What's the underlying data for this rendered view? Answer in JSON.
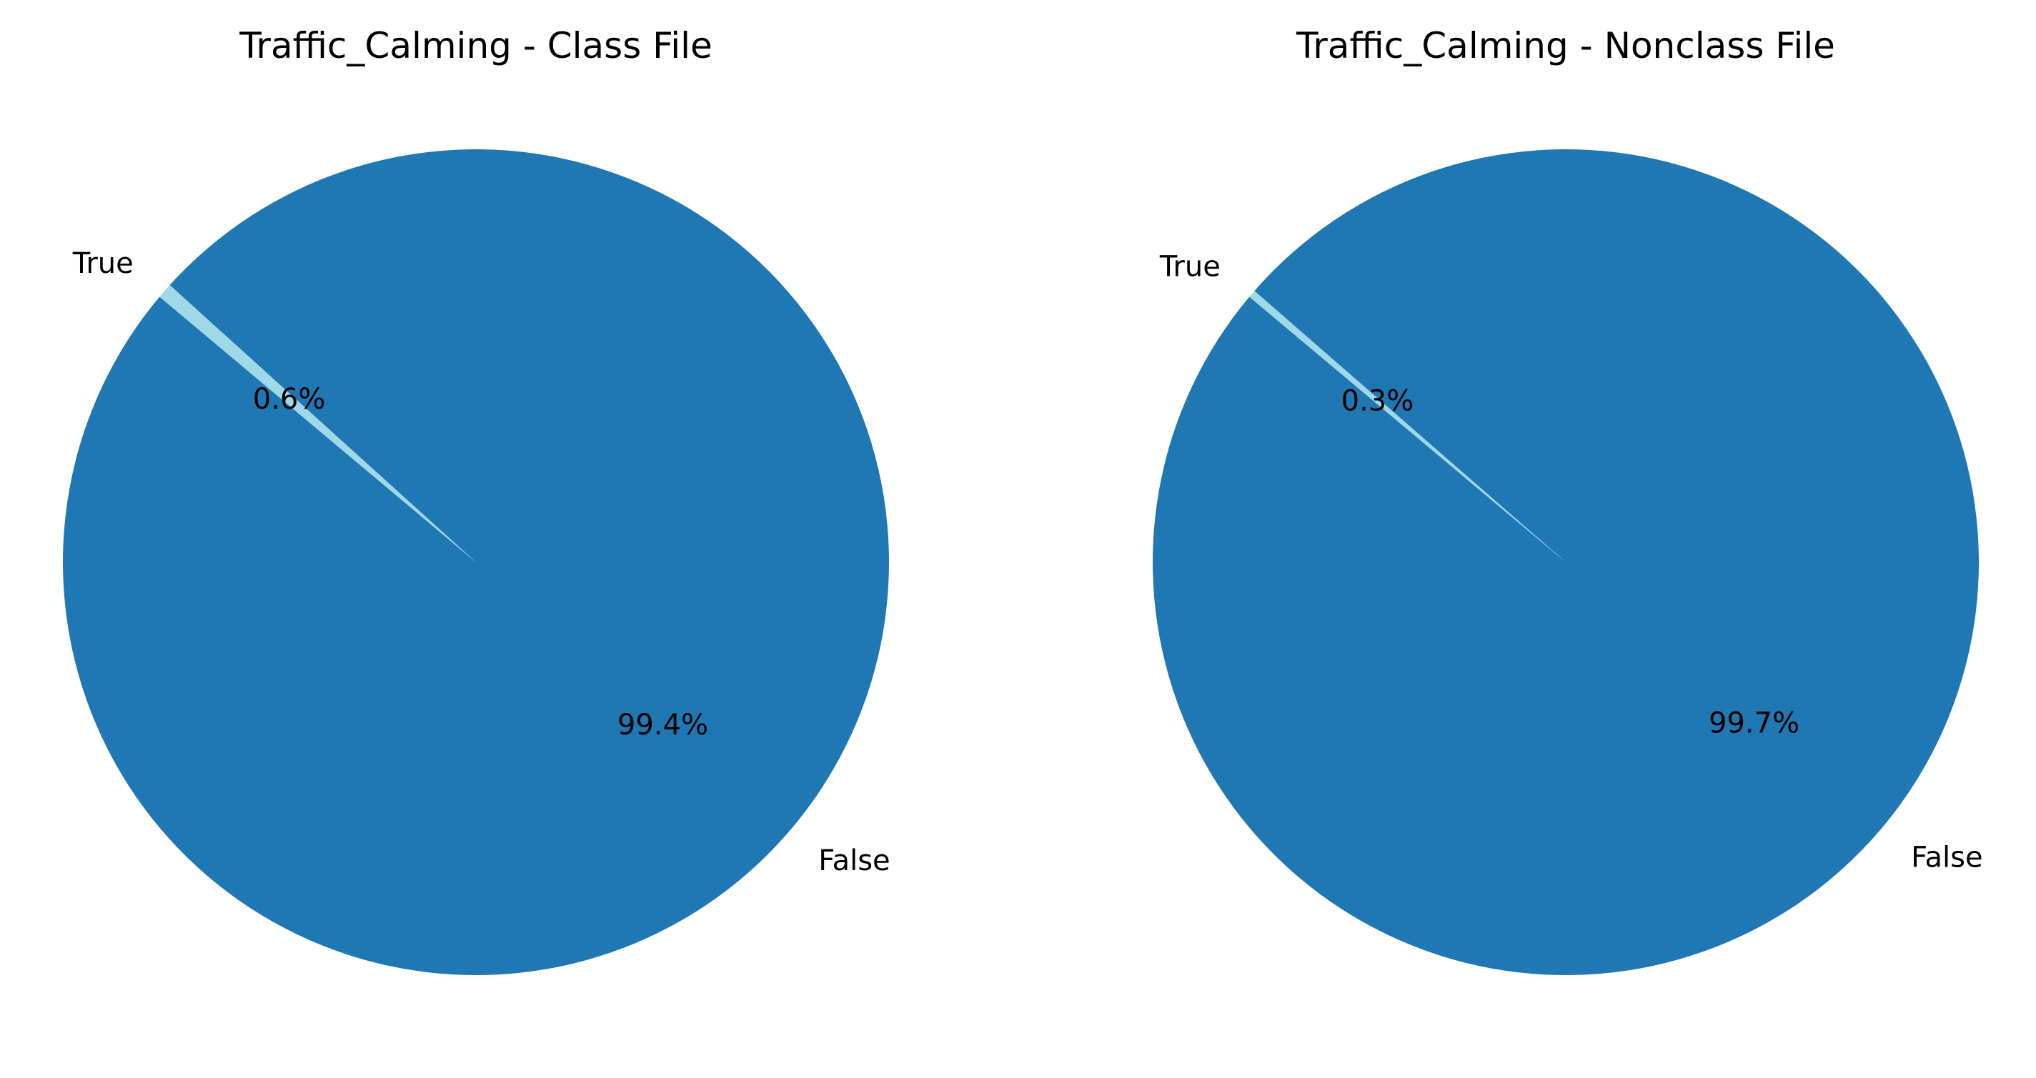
{
  "chart_data": [
    {
      "type": "pie",
      "title": "Traffic_Calming - Class File",
      "slices": [
        {
          "label": "False",
          "value": 99.4,
          "pct_label": "99.4%",
          "color": "#1f77b4"
        },
        {
          "label": "True",
          "value": 0.6,
          "pct_label": "0.6%",
          "color": "#9fd8e6"
        }
      ]
    },
    {
      "type": "pie",
      "title": "Traffic_Calming - Nonclass File",
      "slices": [
        {
          "label": "False",
          "value": 99.7,
          "pct_label": "99.7%",
          "color": "#1f77b4"
        },
        {
          "label": "True",
          "value": 0.3,
          "pct_label": "0.3%",
          "color": "#9fd8e6"
        }
      ]
    }
  ]
}
